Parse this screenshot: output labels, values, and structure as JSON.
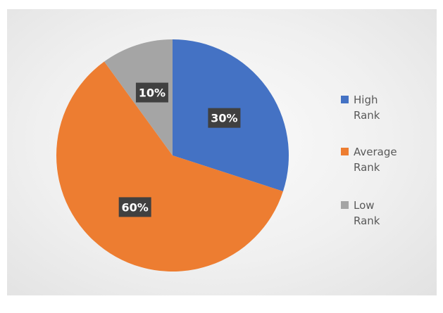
{
  "chart_data": {
    "type": "pie",
    "slices": [
      {
        "name": "High Rank",
        "value": 30,
        "label": "30%",
        "color": "#4472c4"
      },
      {
        "name": "Average Rank",
        "value": 60,
        "label": "60%",
        "color": "#ed7d31"
      },
      {
        "name": "Low Rank",
        "value": 10,
        "label": "10%",
        "color": "#a5a5a5"
      }
    ],
    "legend_placement": "right",
    "data_label_style": "dark callout boxes with white bold text"
  }
}
